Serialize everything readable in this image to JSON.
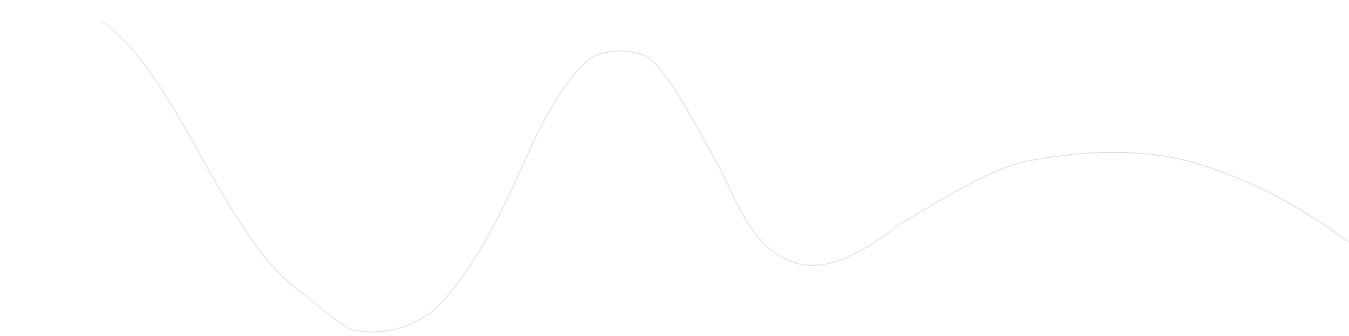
{
  "background": {
    "color": "#ffffff"
  },
  "decoration": {
    "kind": "wave-line",
    "stroke_color": "#d9d9d9"
  }
}
